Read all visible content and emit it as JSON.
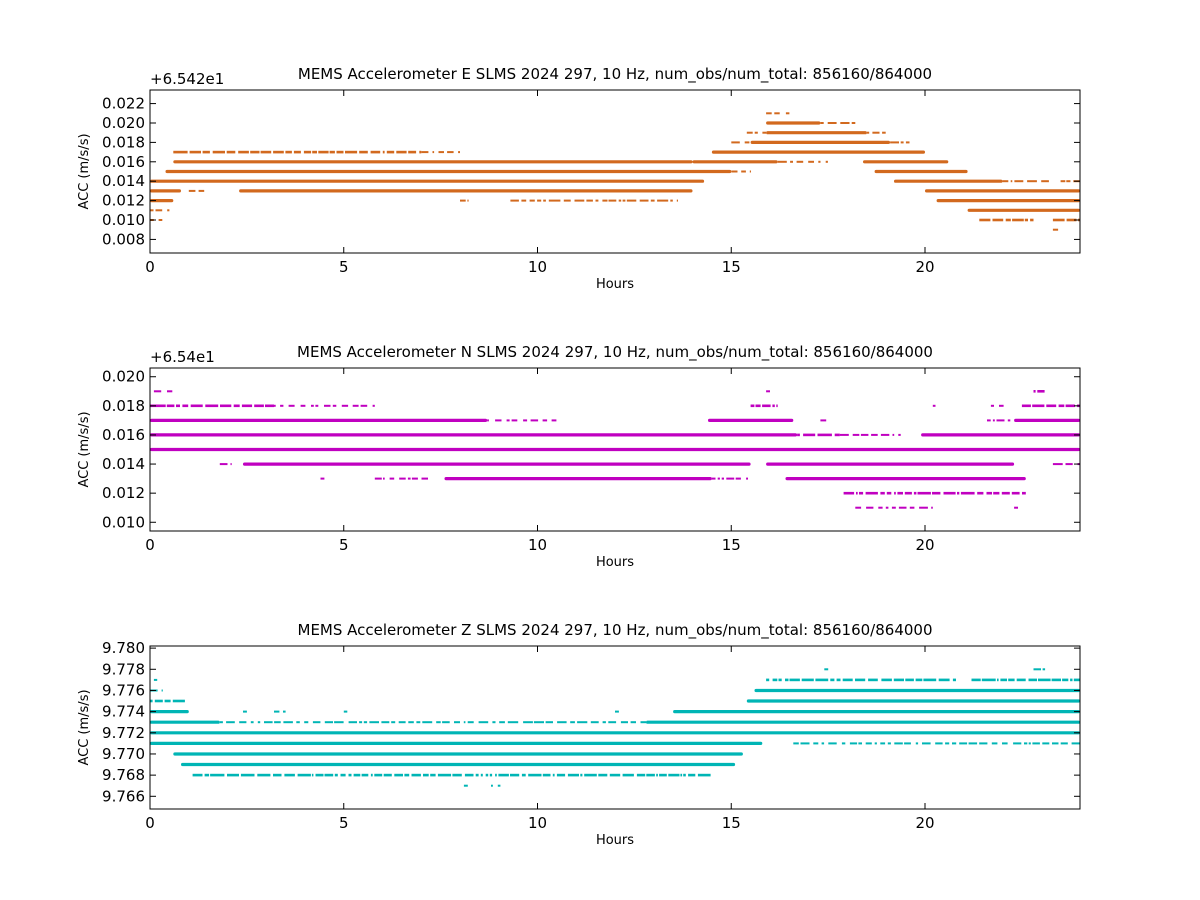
{
  "chart_data": [
    {
      "type": "scatter",
      "title": "MEMS Accelerometer E SLMS 2024 297, 10 Hz, num_obs/num_total: 856160/864000",
      "xlabel": "Hours",
      "ylabel": "ACC (m/s/s)",
      "offset_label": "+6.542e1",
      "offset": 65.42,
      "color": "#d2691e",
      "xlim": [
        0,
        24
      ],
      "ylim": [
        0.0066,
        0.0234
      ],
      "xticks": [
        "0",
        "5",
        "10",
        "15",
        "20"
      ],
      "yticks": [
        "0.008",
        "0.010",
        "0.012",
        "0.014",
        "0.016",
        "0.018",
        "0.020",
        "0.022"
      ],
      "levels": [
        {
          "y": 0.021,
          "segments": [
            [
              15.9,
              16.5,
              0.3
            ]
          ]
        },
        {
          "y": 0.02,
          "segments": [
            [
              15.9,
              17.3,
              1.0
            ],
            [
              17.3,
              18.2,
              0.6
            ]
          ]
        },
        {
          "y": 0.019,
          "segments": [
            [
              15.4,
              15.9,
              0.4
            ],
            [
              15.9,
              18.5,
              1.0
            ],
            [
              18.5,
              19.0,
              0.4
            ]
          ]
        },
        {
          "y": 0.018,
          "segments": [
            [
              15.0,
              15.5,
              0.4
            ],
            [
              15.5,
              19.1,
              1.0
            ],
            [
              19.1,
              19.6,
              0.5
            ]
          ]
        },
        {
          "y": 0.017,
          "segments": [
            [
              0.6,
              7.0,
              0.8
            ],
            [
              7.0,
              8.0,
              0.3
            ],
            [
              14.5,
              20.0,
              1.0
            ]
          ]
        },
        {
          "y": 0.016,
          "segments": [
            [
              0.6,
              14.0,
              1.0
            ],
            [
              14.0,
              16.2,
              1.0
            ],
            [
              16.2,
              17.5,
              0.4
            ],
            [
              18.4,
              20.6,
              1.0
            ]
          ]
        },
        {
          "y": 0.015,
          "segments": [
            [
              0.4,
              15.0,
              1.0
            ],
            [
              15.0,
              15.5,
              0.6
            ],
            [
              18.7,
              21.1,
              1.0
            ]
          ]
        },
        {
          "y": 0.014,
          "segments": [
            [
              0.0,
              14.3,
              1.0
            ],
            [
              19.2,
              22.0,
              1.0
            ],
            [
              22.0,
              23.2,
              0.6
            ],
            [
              23.5,
              24.0,
              0.6
            ]
          ]
        },
        {
          "y": 0.013,
          "segments": [
            [
              0.0,
              0.8,
              1.0
            ],
            [
              1.0,
              1.4,
              0.4
            ],
            [
              2.3,
              14.0,
              1.0
            ],
            [
              20.0,
              24.0,
              1.0
            ]
          ]
        },
        {
          "y": 0.012,
          "segments": [
            [
              0.0,
              0.6,
              1.0
            ],
            [
              8.0,
              8.2,
              0.3
            ],
            [
              9.3,
              13.6,
              0.6
            ],
            [
              20.3,
              24.0,
              1.0
            ]
          ]
        },
        {
          "y": 0.011,
          "segments": [
            [
              0.0,
              0.5,
              0.5
            ],
            [
              21.1,
              24.0,
              1.0
            ]
          ]
        },
        {
          "y": 0.01,
          "segments": [
            [
              0.0,
              0.4,
              0.4
            ],
            [
              21.4,
              22.8,
              0.8
            ],
            [
              23.3,
              24.0,
              0.9
            ]
          ]
        },
        {
          "y": 0.009,
          "segments": [
            [
              23.3,
              23.5,
              0.3
            ]
          ]
        }
      ]
    },
    {
      "type": "scatter",
      "title": "MEMS Accelerometer N SLMS 2024 297, 10 Hz, num_obs/num_total: 856160/864000",
      "xlabel": "Hours",
      "ylabel": "ACC (m/s/s)",
      "offset_label": "+6.54e1",
      "offset": 65.4,
      "color": "#c000c0",
      "xlim": [
        0,
        24
      ],
      "ylim": [
        0.0094,
        0.0206
      ],
      "xticks": [
        "0",
        "5",
        "10",
        "15",
        "20"
      ],
      "yticks": [
        "0.010",
        "0.012",
        "0.014",
        "0.016",
        "0.018",
        "0.020"
      ],
      "levels": [
        {
          "y": 0.019,
          "segments": [
            [
              0.1,
              0.6,
              0.3
            ],
            [
              15.9,
              16.0,
              0.3
            ],
            [
              22.8,
              23.1,
              0.9
            ]
          ]
        },
        {
          "y": 0.018,
          "segments": [
            [
              0.0,
              3.2,
              0.9
            ],
            [
              3.2,
              5.8,
              0.3
            ],
            [
              15.5,
              16.2,
              0.9
            ],
            [
              20.2,
              20.3,
              0.3
            ],
            [
              21.7,
              22.1,
              0.3
            ],
            [
              22.5,
              24.0,
              0.8
            ]
          ]
        },
        {
          "y": 0.017,
          "segments": [
            [
              0.0,
              8.7,
              1.0
            ],
            [
              8.7,
              10.5,
              0.3
            ],
            [
              14.4,
              16.6,
              1.0
            ],
            [
              17.3,
              17.5,
              0.3
            ],
            [
              21.6,
              22.2,
              0.4
            ],
            [
              22.3,
              24.0,
              1.0
            ]
          ]
        },
        {
          "y": 0.016,
          "segments": [
            [
              0.0,
              16.7,
              1.0
            ],
            [
              16.7,
              17.8,
              0.8
            ],
            [
              17.8,
              19.4,
              0.4
            ],
            [
              19.9,
              24.0,
              1.0
            ]
          ]
        },
        {
          "y": 0.015,
          "segments": [
            [
              0.0,
              24.0,
              1.0
            ]
          ]
        },
        {
          "y": 0.014,
          "segments": [
            [
              1.8,
              2.1,
              0.3
            ],
            [
              2.4,
              15.5,
              1.0
            ],
            [
              15.9,
              22.3,
              1.0
            ],
            [
              23.3,
              24.0,
              0.5
            ]
          ]
        },
        {
          "y": 0.013,
          "segments": [
            [
              4.4,
              4.5,
              0.3
            ],
            [
              5.8,
              7.2,
              0.4
            ],
            [
              7.6,
              14.5,
              1.0
            ],
            [
              14.5,
              15.5,
              0.4
            ],
            [
              16.4,
              22.6,
              1.0
            ]
          ]
        },
        {
          "y": 0.012,
          "segments": [
            [
              17.9,
              22.6,
              0.8
            ]
          ]
        },
        {
          "y": 0.011,
          "segments": [
            [
              18.2,
              20.2,
              0.4
            ],
            [
              22.3,
              22.4,
              0.3
            ]
          ]
        }
      ]
    },
    {
      "type": "scatter",
      "title": "MEMS Accelerometer Z SLMS 2024 297, 10 Hz, num_obs/num_total: 856160/864000",
      "xlabel": "Hours",
      "ylabel": "ACC (m/s/s)",
      "offset_label": "",
      "offset": 0,
      "color": "#00b5b5",
      "xlim": [
        0,
        24
      ],
      "ylim": [
        9.7648,
        9.7802
      ],
      "xticks": [
        "0",
        "5",
        "10",
        "15",
        "20"
      ],
      "yticks": [
        "9.766",
        "9.768",
        "9.770",
        "9.772",
        "9.774",
        "9.776",
        "9.778",
        "9.780"
      ],
      "levels": [
        {
          "y": 9.778,
          "segments": [
            [
              17.4,
              17.5,
              0.3
            ],
            [
              22.8,
              23.1,
              0.3
            ]
          ]
        },
        {
          "y": 9.777,
          "segments": [
            [
              0.1,
              0.2,
              0.3
            ],
            [
              15.9,
              20.8,
              0.7
            ],
            [
              21.2,
              24.0,
              0.8
            ]
          ]
        },
        {
          "y": 9.776,
          "segments": [
            [
              0.0,
              0.3,
              0.6
            ],
            [
              15.6,
              24.0,
              1.0
            ]
          ]
        },
        {
          "y": 9.775,
          "segments": [
            [
              0.0,
              0.9,
              0.9
            ],
            [
              15.4,
              24.0,
              1.0
            ]
          ]
        },
        {
          "y": 9.774,
          "segments": [
            [
              0.0,
              1.0,
              1.0
            ],
            [
              2.4,
              2.5,
              0.3
            ],
            [
              3.2,
              3.5,
              0.3
            ],
            [
              5.0,
              5.1,
              0.3
            ],
            [
              12.0,
              12.1,
              0.3
            ],
            [
              13.5,
              24.0,
              1.0
            ]
          ]
        },
        {
          "y": 9.773,
          "segments": [
            [
              0.0,
              1.8,
              1.0
            ],
            [
              1.8,
              12.8,
              0.5
            ],
            [
              12.8,
              24.0,
              1.0
            ]
          ]
        },
        {
          "y": 9.772,
          "segments": [
            [
              0.0,
              24.0,
              1.0
            ]
          ]
        },
        {
          "y": 9.771,
          "segments": [
            [
              0.0,
              15.8,
              1.0
            ],
            [
              16.6,
              24.0,
              0.4
            ]
          ]
        },
        {
          "y": 9.77,
          "segments": [
            [
              0.6,
              15.3,
              1.0
            ]
          ]
        },
        {
          "y": 9.769,
          "segments": [
            [
              0.8,
              15.1,
              1.0
            ]
          ]
        },
        {
          "y": 9.768,
          "segments": [
            [
              1.1,
              14.5,
              0.8
            ]
          ]
        },
        {
          "y": 9.767,
          "segments": [
            [
              8.1,
              8.2,
              0.3
            ],
            [
              8.8,
              9.1,
              0.3
            ]
          ]
        }
      ]
    }
  ]
}
